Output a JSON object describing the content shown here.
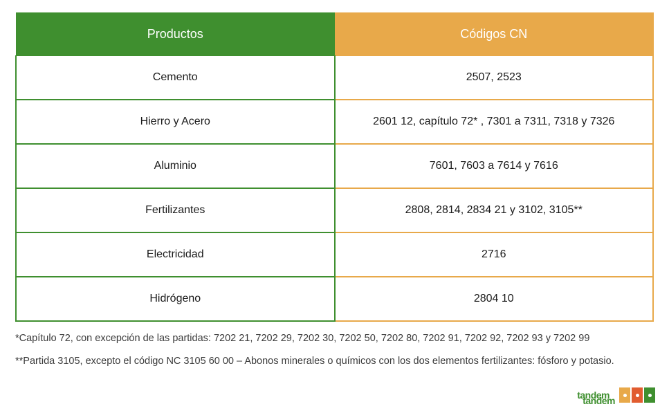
{
  "colors": {
    "green": "#3f8f2f",
    "orange": "#e8a94a",
    "text": "#1a1a1a",
    "note_text": "#3a3a3a",
    "logo_red": "#e15c2f"
  },
  "table": {
    "headers": {
      "left": "Productos",
      "right": "Códigos CN"
    },
    "rows": [
      {
        "product": "Cemento",
        "codes": "2507, 2523"
      },
      {
        "product": "Hierro y Acero",
        "codes": "2601 12, capítulo 72* , 7301 a 7311, 7318 y 7326"
      },
      {
        "product": "Aluminio",
        "codes": "7601, 7603 a 7614 y 7616"
      },
      {
        "product": "Fertilizantes",
        "codes": "2808, 2814, 2834 21 y 3102, 3105**"
      },
      {
        "product": "Electricidad",
        "codes": "2716"
      },
      {
        "product": "Hidrógeno",
        "codes": "2804 10"
      }
    ]
  },
  "notes": {
    "n1": "*Capítulo 72, con excepción de las partidas: 7202 21, 7202 29, 7202 30, 7202 50, 7202 80, 7202 91, 7202 92, 7202 93 y 7202 99",
    "n2": "**Partida 3105, excepto el código NC 3105 60 00 – Abonos minerales o químicos con los dos elementos fertilizantes: fósforo y potasio."
  },
  "logo": {
    "line1": "tandem",
    "line2": "tandem"
  }
}
